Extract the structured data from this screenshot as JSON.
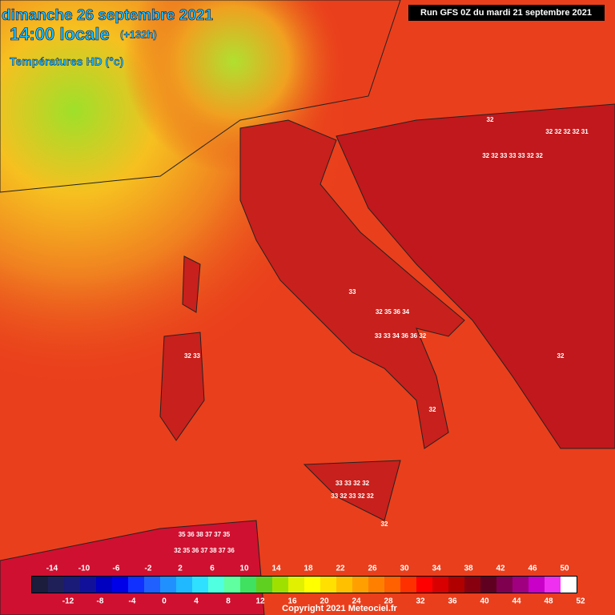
{
  "header": {
    "date": "dimanche 26 septembre 2021",
    "time": "14:00 locale",
    "lead": "(+132h)",
    "field": "Températures HD (°c)",
    "run": "Run GFS 0Z du mardi 21 septembre 2021"
  },
  "legend": {
    "upper_labels": [
      -14,
      -10,
      -6,
      -2,
      2,
      6,
      10,
      14,
      18,
      22,
      26,
      30,
      34,
      38,
      42,
      46,
      50
    ],
    "lower_labels": [
      -12,
      -8,
      -4,
      0,
      4,
      8,
      12,
      16,
      20,
      24,
      28,
      32,
      36,
      40,
      44,
      48,
      52
    ],
    "colors": [
      "#1c1c3c",
      "#202058",
      "#1a1a78",
      "#10109a",
      "#0000c0",
      "#0000e8",
      "#1030ff",
      "#2060ff",
      "#2090ff",
      "#20b8ff",
      "#30e0ff",
      "#50ffe0",
      "#60ff a0",
      "#40e060",
      "#60d020",
      "#a0e000",
      "#e0f000",
      "#ffff00",
      "#ffe000",
      "#ffc000",
      "#ffa000",
      "#ff8000",
      "#ff6000",
      "#ff3000",
      "#ff0000",
      "#d80000",
      "#b00000",
      "#880010",
      "#600020",
      "#800050",
      "#a00080",
      "#c800c8",
      "#f030f0",
      "#ffffff"
    ]
  },
  "map_labels": [
    "32",
    "32 32 32 32 31",
    "32 32 33 33 33 32 32",
    "33",
    "32 35 36 34",
    "33 33 34 36 36 32",
    "32 33",
    "32",
    "32",
    "33 33 32 32",
    "32",
    "35 36 38 37 37 35",
    "32 35 36 37 38 37 36",
    "33 32 33 32 32"
  ],
  "copyright": "Copyright 2021 Meteociel.fr"
}
